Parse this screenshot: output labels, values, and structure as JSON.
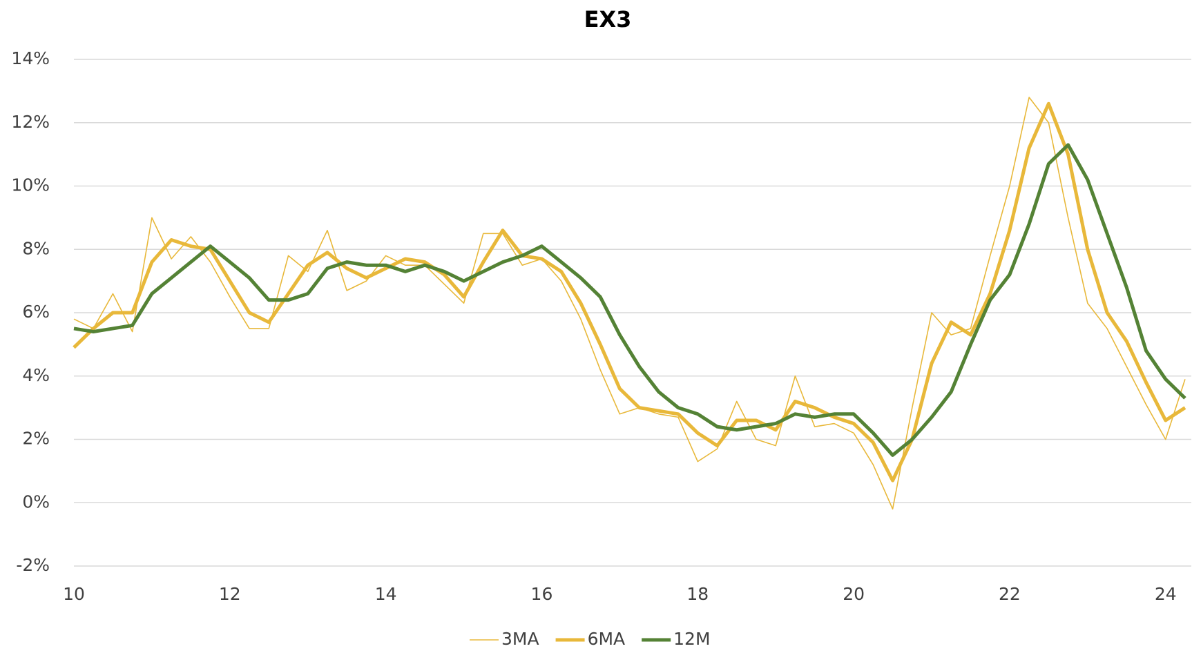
{
  "chart_data": {
    "type": "line",
    "title": "EX3",
    "x": [
      10,
      10.25,
      10.5,
      10.75,
      11,
      11.25,
      11.5,
      11.75,
      12,
      12.25,
      12.5,
      12.75,
      13,
      13.25,
      13.5,
      13.75,
      14,
      14.25,
      14.5,
      14.75,
      15,
      15.25,
      15.5,
      15.75,
      16,
      16.25,
      16.5,
      16.75,
      17,
      17.25,
      17.5,
      17.75,
      18,
      18.25,
      18.5,
      18.75,
      19,
      19.25,
      19.5,
      19.75,
      20,
      20.25,
      20.5,
      20.75,
      21,
      21.25,
      21.5,
      21.75,
      22,
      22.25,
      22.5,
      22.75,
      23,
      23.25,
      23.5,
      23.75,
      24,
      24.25
    ],
    "series": [
      {
        "name": "3MA",
        "color": "#e8b83a",
        "width": 1.6,
        "values": [
          5.8,
          5.5,
          6.6,
          5.4,
          9.0,
          7.7,
          8.4,
          7.6,
          6.5,
          5.5,
          5.5,
          7.8,
          7.3,
          8.6,
          6.7,
          7.0,
          7.8,
          7.5,
          7.5,
          6.9,
          6.3,
          8.5,
          8.5,
          7.5,
          7.7,
          7.0,
          5.8,
          4.2,
          2.8,
          3.0,
          2.8,
          2.7,
          1.3,
          1.7,
          3.2,
          2.0,
          1.8,
          4.0,
          2.4,
          2.5,
          2.2,
          1.2,
          -0.2,
          3.0,
          6.0,
          5.3,
          5.5,
          7.8,
          10.0,
          12.8,
          12.0,
          9.0,
          6.3,
          5.5,
          4.3,
          3.1,
          2.0,
          3.9
        ]
      },
      {
        "name": "6MA",
        "color": "#e8b83a",
        "width": 5,
        "values": [
          4.9,
          5.5,
          6.0,
          6.0,
          7.6,
          8.3,
          8.1,
          8.0,
          7.0,
          6.0,
          5.7,
          6.6,
          7.5,
          7.9,
          7.4,
          7.1,
          7.4,
          7.7,
          7.6,
          7.2,
          6.5,
          7.6,
          8.6,
          7.8,
          7.7,
          7.3,
          6.3,
          5.0,
          3.6,
          3.0,
          2.9,
          2.8,
          2.2,
          1.8,
          2.6,
          2.6,
          2.3,
          3.2,
          3.0,
          2.7,
          2.5,
          1.9,
          0.7,
          2.0,
          4.4,
          5.7,
          5.3,
          6.6,
          8.6,
          11.2,
          12.6,
          11.0,
          8.0,
          6.0,
          5.1,
          3.8,
          2.6,
          3.0
        ]
      },
      {
        "name": "12M",
        "color": "#548235",
        "width": 5,
        "values": [
          5.5,
          5.4,
          5.5,
          5.6,
          6.6,
          7.1,
          7.6,
          8.1,
          7.6,
          7.1,
          6.4,
          6.4,
          6.6,
          7.4,
          7.6,
          7.5,
          7.5,
          7.3,
          7.5,
          7.3,
          7.0,
          7.3,
          7.6,
          7.8,
          8.1,
          7.6,
          7.1,
          6.5,
          5.3,
          4.3,
          3.5,
          3.0,
          2.8,
          2.4,
          2.3,
          2.4,
          2.5,
          2.8,
          2.7,
          2.8,
          2.8,
          2.2,
          1.5,
          2.0,
          2.7,
          3.5,
          5.0,
          6.4,
          7.2,
          8.8,
          10.7,
          11.3,
          10.2,
          8.5,
          6.8,
          4.8,
          3.9,
          3.3
        ]
      }
    ],
    "xlim": [
      10,
      24.33
    ],
    "xticks": [
      10,
      12,
      14,
      16,
      18,
      20,
      22,
      24
    ],
    "ylim": [
      -2,
      14
    ],
    "yticks": [
      {
        "value": -2,
        "label": "-2%"
      },
      {
        "value": 0,
        "label": "0%"
      },
      {
        "value": 2,
        "label": "2%"
      },
      {
        "value": 4,
        "label": "4%"
      },
      {
        "value": 6,
        "label": "6%"
      },
      {
        "value": 8,
        "label": "8%"
      },
      {
        "value": 10,
        "label": "10%"
      },
      {
        "value": 12,
        "label": "12%"
      },
      {
        "value": 14,
        "label": "14%"
      }
    ],
    "grid": true,
    "legend": "bottom"
  }
}
